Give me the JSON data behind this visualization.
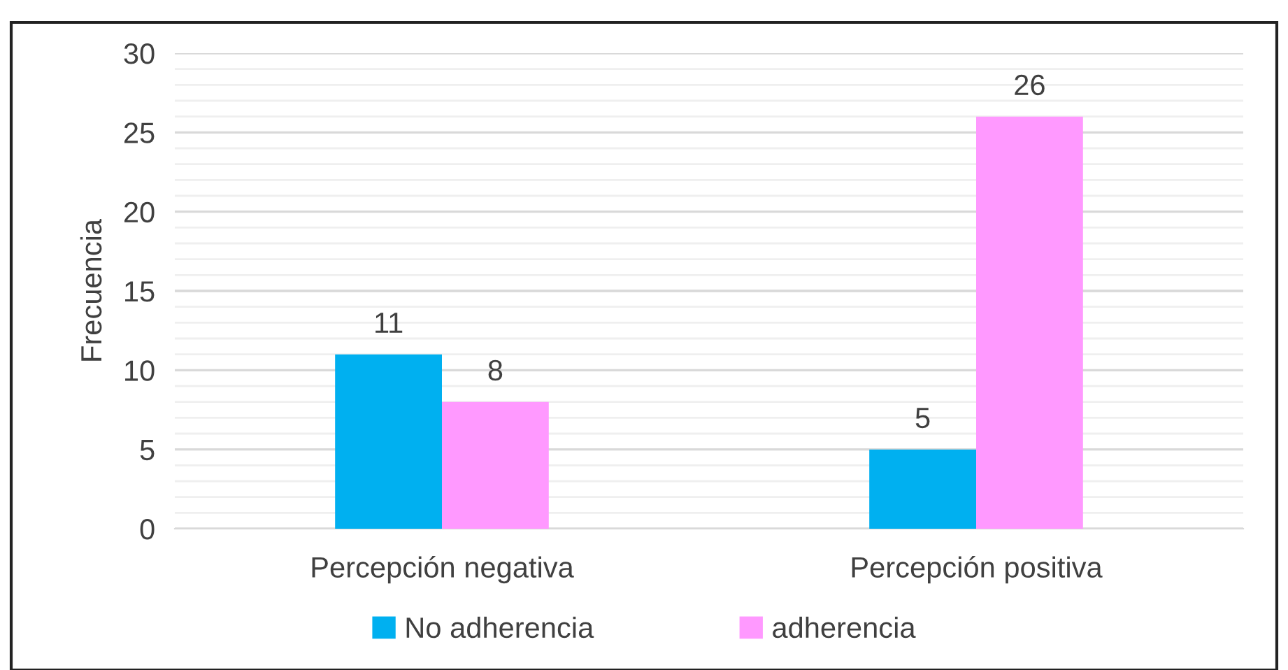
{
  "chart_data": {
    "type": "bar",
    "ylabel": "Frecuencia",
    "categories": [
      "Percepción negativa",
      "Percepción positiva"
    ],
    "series": [
      {
        "name": "No adherencia",
        "color": "#00b0f0",
        "values": [
          11,
          5
        ]
      },
      {
        "name": "adherencia",
        "color": "#ff99ff",
        "values": [
          8,
          26
        ]
      }
    ],
    "ylim": [
      0,
      30
    ],
    "yticks": [
      0,
      5,
      10,
      15,
      20,
      25,
      30
    ],
    "grid": "y",
    "data_labels": true,
    "legend": "bottom"
  }
}
